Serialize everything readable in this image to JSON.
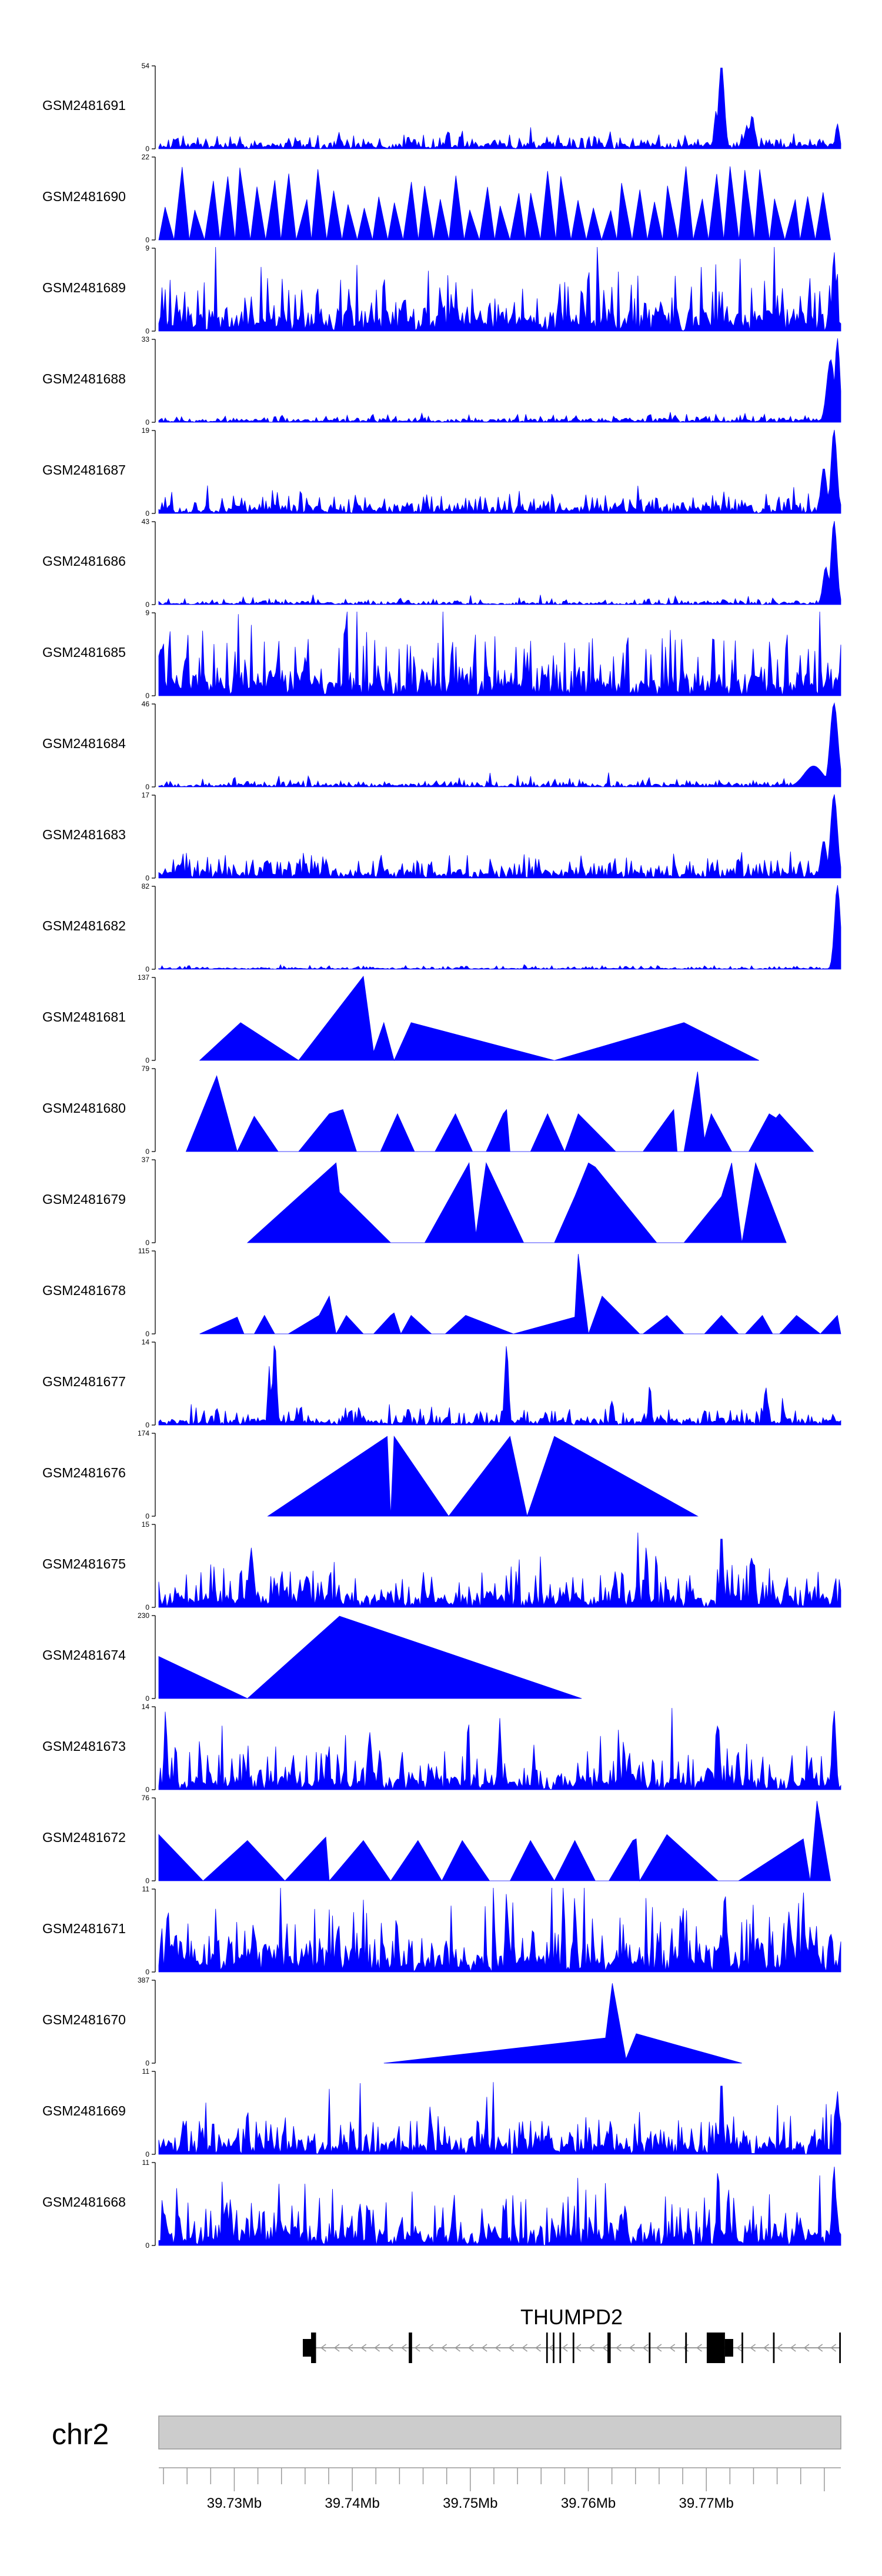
{
  "chart_data": {
    "type": "area",
    "title": "",
    "fill_color": "#0000FF",
    "chromosome": "chr2",
    "gene": "THUMPD2",
    "xlim_mb": [
      39.7236,
      39.7814
    ],
    "x_ticks": [
      "39.73Mb",
      "39.74Mb",
      "39.75Mb",
      "39.76Mb",
      "39.77Mb"
    ],
    "tracks": [
      {
        "name": "GSM2481691",
        "ymax": "54",
        "style": "dense",
        "max": 54,
        "seed": 11,
        "base": 0.06,
        "amp": 0.14,
        "peaks": [
          [
            0.825,
            1.0,
            0.006
          ],
          [
            0.817,
            0.45,
            0.004
          ],
          [
            0.87,
            0.4,
            0.005
          ],
          [
            0.862,
            0.28,
            0.004
          ],
          [
            0.995,
            0.3,
            0.004
          ]
        ]
      },
      {
        "name": "GSM2481690",
        "ymax": "22",
        "style": "triangles",
        "max": 22,
        "seed": 12,
        "span": [
          0.0,
          0.985
        ],
        "count": 44
      },
      {
        "name": "GSM2481689",
        "ymax": "9",
        "style": "dense",
        "max": 9,
        "seed": 13,
        "base": 0.18,
        "amp": 0.55,
        "peaks": [
          [
            0.99,
            0.95,
            0.004
          ]
        ]
      },
      {
        "name": "GSM2481688",
        "ymax": "33",
        "style": "dense",
        "max": 33,
        "seed": 14,
        "base": 0.03,
        "amp": 0.08,
        "peaks": [
          [
            0.985,
            0.75,
            0.008
          ],
          [
            0.995,
            1.0,
            0.005
          ]
        ]
      },
      {
        "name": "GSM2481687",
        "ymax": "19",
        "style": "dense",
        "max": 19,
        "seed": 15,
        "base": 0.08,
        "amp": 0.2,
        "peaks": [
          [
            0.99,
            1.0,
            0.006
          ],
          [
            0.975,
            0.55,
            0.006
          ]
        ]
      },
      {
        "name": "GSM2481686",
        "ymax": "43",
        "style": "dense",
        "max": 43,
        "seed": 16,
        "base": 0.025,
        "amp": 0.06,
        "peaks": [
          [
            0.99,
            1.0,
            0.006
          ],
          [
            0.978,
            0.45,
            0.006
          ]
        ]
      },
      {
        "name": "GSM2481685",
        "ymax": "9",
        "style": "dense",
        "max": 9,
        "seed": 17,
        "base": 0.2,
        "amp": 0.65,
        "peaks": []
      },
      {
        "name": "GSM2481684",
        "ymax": "46",
        "style": "dense",
        "max": 46,
        "seed": 18,
        "base": 0.03,
        "amp": 0.07,
        "peaks": [
          [
            0.99,
            1.0,
            0.008
          ],
          [
            0.96,
            0.25,
            0.02
          ]
        ]
      },
      {
        "name": "GSM2481683",
        "ymax": "17",
        "style": "dense",
        "max": 17,
        "seed": 19,
        "base": 0.07,
        "amp": 0.22,
        "peaks": [
          [
            0.99,
            1.0,
            0.007
          ],
          [
            0.975,
            0.45,
            0.006
          ]
        ]
      },
      {
        "name": "GSM2481682",
        "ymax": "82",
        "style": "dense",
        "max": 82,
        "seed": 20,
        "base": 0.01,
        "amp": 0.04,
        "peaks": [
          [
            0.995,
            1.0,
            0.006
          ]
        ]
      },
      {
        "name": "GSM2481681",
        "ymax": "137",
        "style": "polygon",
        "max": 137,
        "pts": [
          [
            0.06,
            0
          ],
          [
            0.12,
            0.45
          ],
          [
            0.205,
            0
          ],
          [
            0.3,
            1.0
          ],
          [
            0.315,
            0.1
          ],
          [
            0.33,
            0.45
          ],
          [
            0.345,
            0
          ],
          [
            0.37,
            0.45
          ],
          [
            0.58,
            0
          ],
          [
            0.77,
            0.45
          ],
          [
            0.88,
            0
          ]
        ]
      },
      {
        "name": "GSM2481680",
        "ymax": "79",
        "style": "polygon",
        "max": 79,
        "pts": [
          [
            0.04,
            0
          ],
          [
            0.085,
            0.9
          ],
          [
            0.1,
            0.45
          ],
          [
            0.115,
            0
          ],
          [
            0.14,
            0.42
          ],
          [
            0.175,
            0
          ],
          [
            0.205,
            0
          ],
          [
            0.25,
            0.45
          ],
          [
            0.27,
            0.5
          ],
          [
            0.29,
            0
          ],
          [
            0.325,
            0
          ],
          [
            0.35,
            0.45
          ],
          [
            0.375,
            0
          ],
          [
            0.405,
            0
          ],
          [
            0.435,
            0.45
          ],
          [
            0.46,
            0
          ],
          [
            0.48,
            0
          ],
          [
            0.505,
            0.45
          ],
          [
            0.51,
            0.5
          ],
          [
            0.515,
            0
          ],
          [
            0.545,
            0
          ],
          [
            0.57,
            0.45
          ],
          [
            0.595,
            0
          ],
          [
            0.615,
            0.45
          ],
          [
            0.67,
            0
          ],
          [
            0.71,
            0
          ],
          [
            0.75,
            0.45
          ],
          [
            0.755,
            0.5
          ],
          [
            0.76,
            0
          ],
          [
            0.77,
            0
          ],
          [
            0.79,
            0.95
          ],
          [
            0.8,
            0.15
          ],
          [
            0.81,
            0.45
          ],
          [
            0.84,
            0
          ],
          [
            0.865,
            0
          ],
          [
            0.895,
            0.45
          ],
          [
            0.905,
            0.4
          ],
          [
            0.91,
            0.45
          ],
          [
            0.96,
            0
          ]
        ]
      },
      {
        "name": "GSM2481679",
        "ymax": "37",
        "style": "polygon",
        "max": 37,
        "pts": [
          [
            0.13,
            0
          ],
          [
            0.26,
            0.95
          ],
          [
            0.265,
            0.6
          ],
          [
            0.34,
            0
          ],
          [
            0.39,
            0
          ],
          [
            0.455,
            0.95
          ],
          [
            0.465,
            0.1
          ],
          [
            0.48,
            0.95
          ],
          [
            0.535,
            0
          ],
          [
            0.58,
            0
          ],
          [
            0.61,
            0.55
          ],
          [
            0.63,
            0.95
          ],
          [
            0.64,
            0.9
          ],
          [
            0.73,
            0
          ],
          [
            0.77,
            0
          ],
          [
            0.825,
            0.55
          ],
          [
            0.84,
            0.95
          ],
          [
            0.855,
            0
          ],
          [
            0.875,
            0.95
          ],
          [
            0.92,
            0
          ]
        ]
      },
      {
        "name": "GSM2481678",
        "ymax": "115",
        "style": "polygon",
        "max": 115,
        "pts": [
          [
            0.06,
            0
          ],
          [
            0.115,
            0.2
          ],
          [
            0.125,
            0
          ],
          [
            0.14,
            0
          ],
          [
            0.155,
            0.22
          ],
          [
            0.17,
            0
          ],
          [
            0.19,
            0
          ],
          [
            0.235,
            0.22
          ],
          [
            0.25,
            0.45
          ],
          [
            0.26,
            0
          ],
          [
            0.275,
            0.22
          ],
          [
            0.3,
            0
          ],
          [
            0.315,
            0
          ],
          [
            0.34,
            0.22
          ],
          [
            0.345,
            0.25
          ],
          [
            0.355,
            0
          ],
          [
            0.37,
            0.22
          ],
          [
            0.4,
            0
          ],
          [
            0.42,
            0
          ],
          [
            0.45,
            0.22
          ],
          [
            0.52,
            0
          ],
          [
            0.61,
            0.2
          ],
          [
            0.615,
            0.95
          ],
          [
            0.63,
            0
          ],
          [
            0.65,
            0.45
          ],
          [
            0.705,
            0
          ],
          [
            0.71,
            0
          ],
          [
            0.745,
            0.22
          ],
          [
            0.77,
            0
          ],
          [
            0.8,
            0
          ],
          [
            0.825,
            0.22
          ],
          [
            0.85,
            0
          ],
          [
            0.86,
            0
          ],
          [
            0.885,
            0.22
          ],
          [
            0.9,
            0
          ],
          [
            0.91,
            0
          ],
          [
            0.935,
            0.22
          ],
          [
            0.97,
            0
          ],
          [
            0.995,
            0.22
          ],
          [
            1.0,
            0
          ]
        ]
      },
      {
        "name": "GSM2481677",
        "ymax": "14",
        "style": "dense",
        "max": 14,
        "seed": 21,
        "base": 0.05,
        "amp": 0.18,
        "peaks": [
          [
            0.17,
            1.0,
            0.004
          ],
          [
            0.162,
            0.7,
            0.003
          ],
          [
            0.51,
            0.95,
            0.004
          ],
          [
            0.72,
            0.5,
            0.003
          ],
          [
            0.89,
            0.45,
            0.004
          ],
          [
            0.665,
            0.3,
            0.003
          ]
        ]
      },
      {
        "name": "GSM2481676",
        "ymax": "174",
        "style": "polygon",
        "max": 174,
        "pts": [
          [
            0.16,
            0
          ],
          [
            0.335,
            0.95
          ],
          [
            0.34,
            0
          ],
          [
            0.345,
            0.95
          ],
          [
            0.425,
            0
          ],
          [
            0.515,
            0.95
          ],
          [
            0.54,
            0
          ],
          [
            0.58,
            0.95
          ],
          [
            0.79,
            0
          ]
        ]
      },
      {
        "name": "GSM2481675",
        "ymax": "15",
        "style": "dense",
        "max": 15,
        "seed": 22,
        "base": 0.12,
        "amp": 0.45,
        "peaks": [
          [
            0.825,
            0.95,
            0.003
          ],
          [
            0.715,
            0.75,
            0.003
          ],
          [
            0.87,
            0.65,
            0.003
          ],
          [
            0.135,
            0.75,
            0.003
          ]
        ]
      },
      {
        "name": "GSM2481674",
        "ymax": "230",
        "style": "polygon",
        "max": 230,
        "pts": [
          [
            0.0,
            0
          ],
          [
            0.0,
            0.5
          ],
          [
            0.13,
            0
          ],
          [
            0.265,
            0.98
          ],
          [
            0.62,
            0
          ]
        ]
      },
      {
        "name": "GSM2481673",
        "ymax": "14",
        "style": "dense",
        "max": 14,
        "seed": 23,
        "base": 0.12,
        "amp": 0.45,
        "peaks": [
          [
            0.01,
            0.95,
            0.003
          ],
          [
            0.5,
            0.85,
            0.003
          ],
          [
            0.99,
            0.95,
            0.004
          ],
          [
            0.82,
            0.8,
            0.004
          ],
          [
            0.31,
            0.7,
            0.003
          ]
        ]
      },
      {
        "name": "GSM2481672",
        "ymax": "76",
        "style": "polygon",
        "max": 76,
        "pts": [
          [
            0.0,
            0
          ],
          [
            0.0,
            0.55
          ],
          [
            0.065,
            0
          ],
          [
            0.13,
            0.48
          ],
          [
            0.185,
            0
          ],
          [
            0.24,
            0.48
          ],
          [
            0.245,
            0.52
          ],
          [
            0.25,
            0
          ],
          [
            0.3,
            0.48
          ],
          [
            0.34,
            0
          ],
          [
            0.38,
            0.48
          ],
          [
            0.415,
            0
          ],
          [
            0.445,
            0.48
          ],
          [
            0.485,
            0
          ],
          [
            0.515,
            0
          ],
          [
            0.545,
            0.48
          ],
          [
            0.58,
            0
          ],
          [
            0.61,
            0.48
          ],
          [
            0.64,
            0
          ],
          [
            0.66,
            0
          ],
          [
            0.695,
            0.48
          ],
          [
            0.7,
            0.5
          ],
          [
            0.705,
            0
          ],
          [
            0.745,
            0.55
          ],
          [
            0.82,
            0
          ],
          [
            0.85,
            0
          ],
          [
            0.945,
            0.5
          ],
          [
            0.955,
            0
          ],
          [
            0.965,
            0.95
          ],
          [
            0.985,
            0
          ]
        ]
      },
      {
        "name": "GSM2481671",
        "ymax": "11",
        "style": "dense",
        "max": 11,
        "seed": 24,
        "base": 0.3,
        "amp": 0.6,
        "peaks": [
          [
            0.51,
            0.95,
            0.003
          ],
          [
            0.83,
            0.95,
            0.004
          ],
          [
            0.61,
            0.9,
            0.003
          ],
          [
            0.945,
            0.95,
            0.003
          ]
        ]
      },
      {
        "name": "GSM2481670",
        "ymax": "387",
        "style": "polygon",
        "max": 387,
        "pts": [
          [
            0.33,
            0
          ],
          [
            0.655,
            0.3
          ],
          [
            0.665,
            0.95
          ],
          [
            0.685,
            0.05
          ],
          [
            0.7,
            0.35
          ],
          [
            0.855,
            0
          ]
        ]
      },
      {
        "name": "GSM2481669",
        "ymax": "11",
        "style": "dense",
        "max": 11,
        "seed": 25,
        "base": 0.15,
        "amp": 0.4,
        "peaks": [
          [
            0.825,
            0.95,
            0.003
          ],
          [
            0.995,
            0.75,
            0.004
          ],
          [
            0.13,
            0.55,
            0.003
          ]
        ]
      },
      {
        "name": "GSM2481668",
        "ymax": "11",
        "style": "dense",
        "max": 11,
        "seed": 26,
        "base": 0.18,
        "amp": 0.45,
        "peaks": [
          [
            0.82,
            0.95,
            0.003
          ],
          [
            0.835,
            0.7,
            0.003
          ],
          [
            0.99,
            0.95,
            0.004
          ],
          [
            0.105,
            0.55,
            0.003
          ]
        ]
      }
    ],
    "gene_model": {
      "strand": "-",
      "thin_span": [
        0.2112,
        0.9983
      ],
      "exons": [
        {
          "start": 0.2112,
          "end": 0.2281,
          "kind": "utr"
        },
        {
          "start": 0.2233,
          "end": 0.2306,
          "kind": "cds"
        },
        {
          "start": 0.3665,
          "end": 0.3714,
          "kind": "cds"
        },
        {
          "start": 0.568,
          "end": 0.5704,
          "kind": "cds"
        },
        {
          "start": 0.5777,
          "end": 0.5801,
          "kind": "cds"
        },
        {
          "start": 0.5874,
          "end": 0.5898,
          "kind": "cds"
        },
        {
          "start": 0.6068,
          "end": 0.6092,
          "kind": "cds"
        },
        {
          "start": 0.6578,
          "end": 0.6626,
          "kind": "cds"
        },
        {
          "start": 0.7184,
          "end": 0.7209,
          "kind": "cds"
        },
        {
          "start": 0.7718,
          "end": 0.7743,
          "kind": "cds"
        },
        {
          "start": 0.8034,
          "end": 0.8301,
          "kind": "cds"
        },
        {
          "start": 0.8301,
          "end": 0.8422,
          "kind": "utr"
        },
        {
          "start": 0.8544,
          "end": 0.8568,
          "kind": "cds"
        },
        {
          "start": 0.9005,
          "end": 0.9029,
          "kind": "cds"
        },
        {
          "start": 0.9976,
          "end": 1.0,
          "kind": "cds"
        }
      ]
    }
  }
}
